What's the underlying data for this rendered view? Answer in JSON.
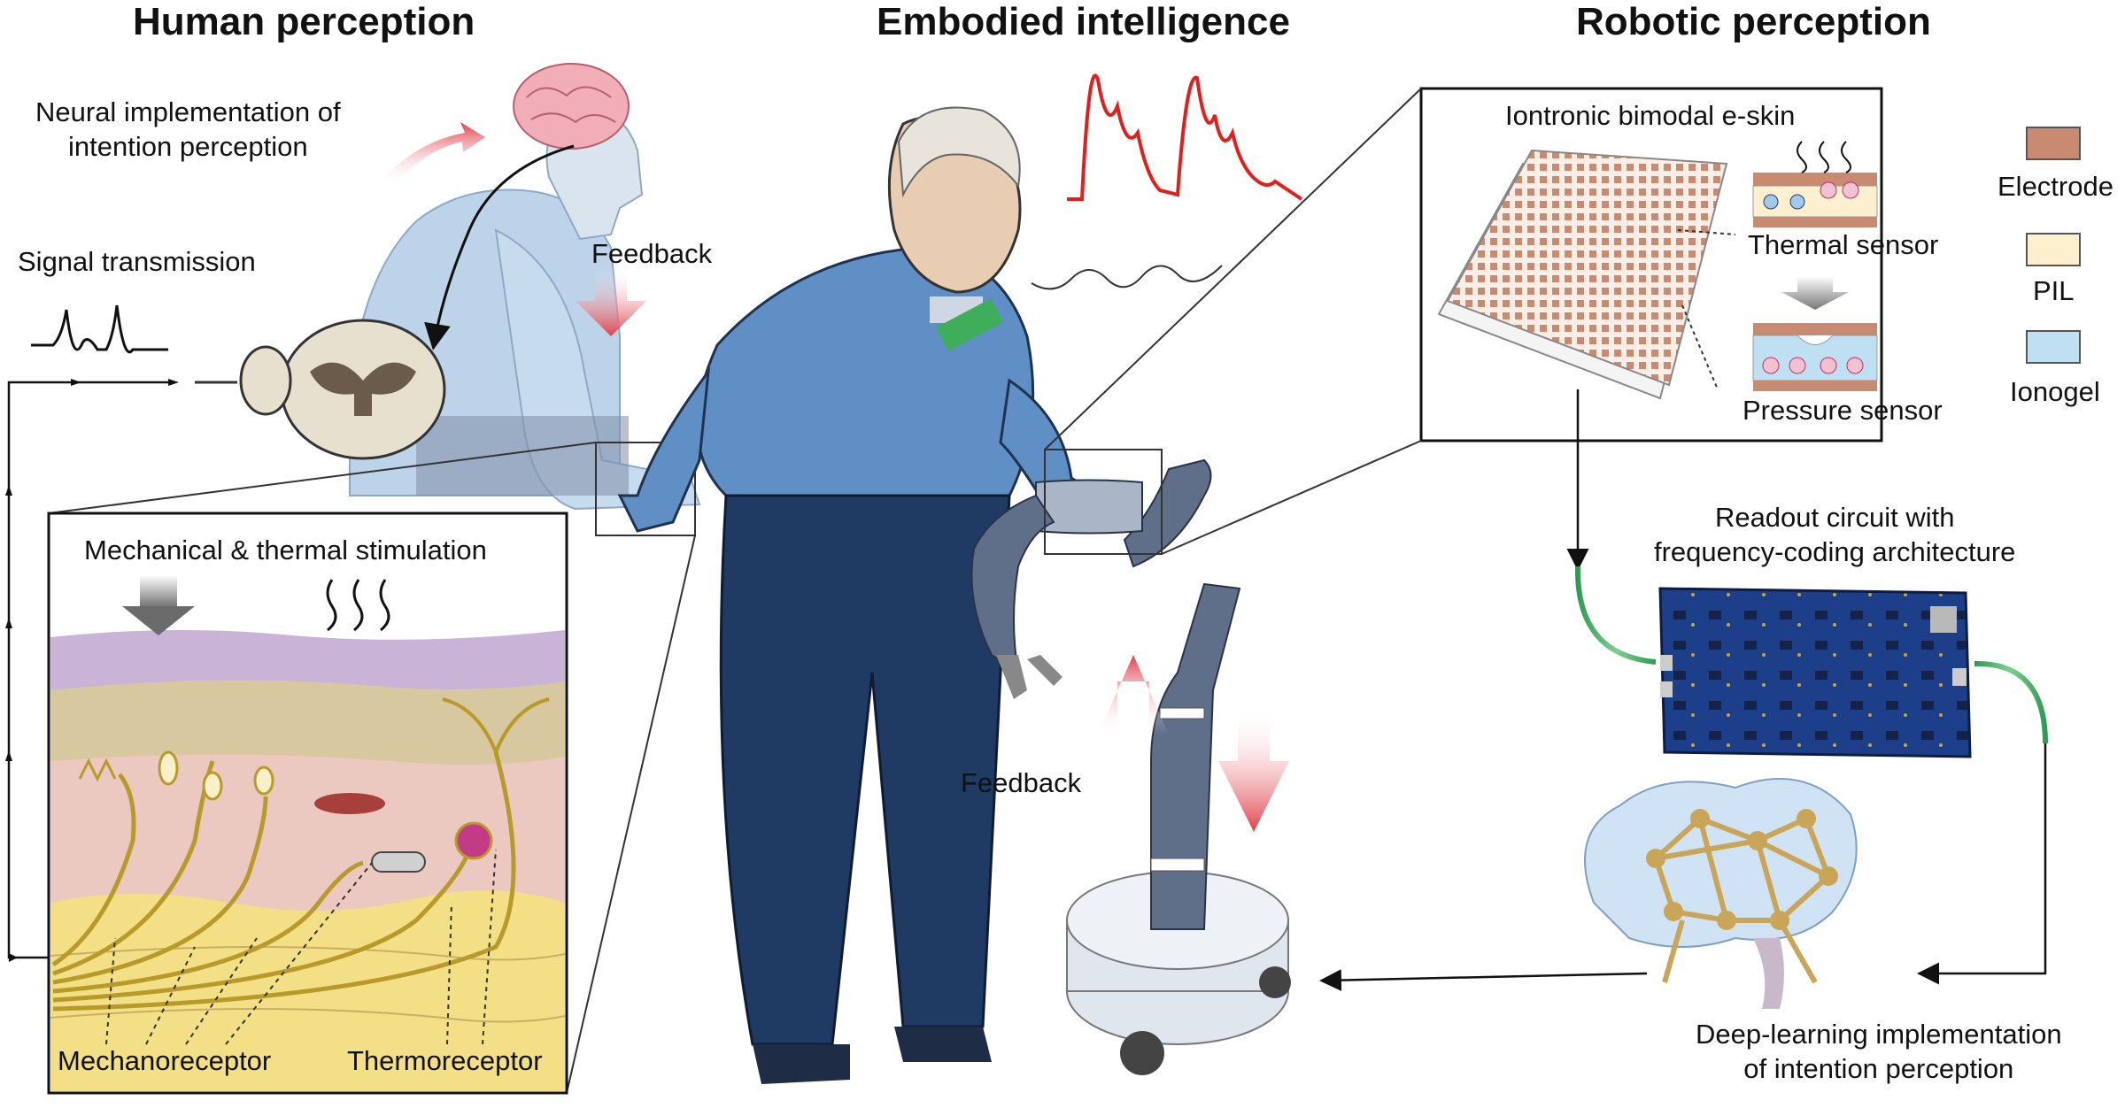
{
  "sections": {
    "human": "Human perception",
    "embodied": "Embodied intelligence",
    "robotic": "Robotic perception"
  },
  "labels": {
    "neural_impl": "Neural implementation of\nintention perception",
    "signal_transmission": "Signal transmission",
    "feedback_top": "Feedback",
    "feedback_robot": "Feedback",
    "stimulation": "Mechanical  &  thermal stimulation",
    "mechanoreceptor": "Mechanoreceptor",
    "thermoreceptor": "Thermoreceptor",
    "eskin_title": "Iontronic bimodal e-skin",
    "thermal_sensor": "Thermal sensor",
    "pressure_sensor": "Pressure sensor",
    "readout": "Readout circuit with\nfrequency-coding architecture",
    "deep_learning": "Deep-learning implementation\nof intention perception"
  },
  "legend": [
    {
      "name": "Electrode",
      "color": "#c98a72"
    },
    {
      "name": "PIL",
      "color": "#fdf0cf"
    },
    {
      "name": "Ionogel",
      "color": "#bfe0f2"
    }
  ],
  "colors": {
    "signal_red": "#e0201c",
    "sweater": "#5f8fc4",
    "pants": "#1f3a63",
    "pcb": "#1d3f8a",
    "cable_green": "#2f9a54",
    "skin_purple": "#c9b3d6",
    "skin_tan": "#d8c8a0",
    "skin_pink": "#ecc9c0",
    "fat_yellow": "#f3df86"
  },
  "icons": [
    "brain-icon",
    "spinal-cord-icon",
    "heat-wave-icon",
    "pressure-arrow-icon",
    "robot-arm-icon",
    "circuit-board-icon",
    "neural-network-brain-icon"
  ]
}
